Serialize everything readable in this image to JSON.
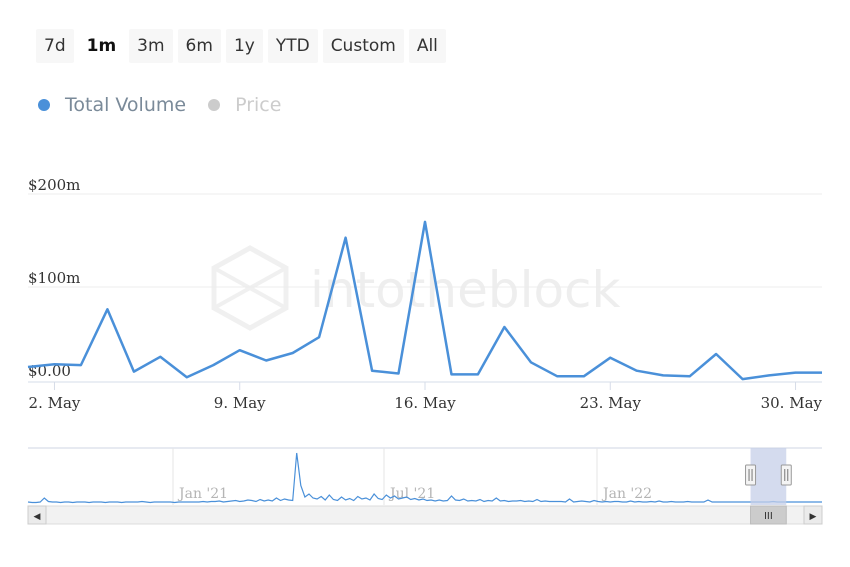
{
  "range_selector": {
    "buttons": [
      "7d",
      "1m",
      "3m",
      "6m",
      "1y",
      "YTD",
      "Custom",
      "All"
    ],
    "selected": "1m"
  },
  "legend": {
    "items": [
      {
        "label": "Total Volume",
        "color": "#4a90d9",
        "active": true
      },
      {
        "label": "Price",
        "color": "#cccccc",
        "active": false
      }
    ]
  },
  "watermark": "intotheblock",
  "chart_data": {
    "type": "line",
    "title": "",
    "xlabel": "",
    "ylabel": "",
    "ylim": [
      0,
      200
    ],
    "y_unit": "$m",
    "y_ticks": [
      "$0.00",
      "$100m",
      "$200m"
    ],
    "x_ticks": [
      "2. May",
      "9. May",
      "16. May",
      "23. May",
      "30. May"
    ],
    "grid": true,
    "legend_position": "top-left",
    "series": [
      {
        "name": "Total Volume",
        "color": "#4a90d9",
        "x": [
          "May 1",
          "May 2",
          "May 3",
          "May 4",
          "May 5",
          "May 6",
          "May 7",
          "May 8",
          "May 9",
          "May 10",
          "May 11",
          "May 12",
          "May 13",
          "May 14",
          "May 15",
          "May 16",
          "May 17",
          "May 18",
          "May 19",
          "May 20",
          "May 21",
          "May 22",
          "May 23",
          "May 24",
          "May 25",
          "May 26",
          "May 27",
          "May 28",
          "May 29",
          "May 30",
          "May 31"
        ],
        "values": [
          14,
          17,
          16,
          76,
          9,
          25,
          3,
          16,
          32,
          21,
          29,
          46,
          153,
          10,
          7,
          170,
          6,
          6,
          57,
          19,
          4,
          4,
          24,
          10,
          5,
          4,
          28,
          1,
          5,
          8,
          8
        ]
      }
    ]
  },
  "navigator": {
    "labels": [
      "Jan '21",
      "Jul '21",
      "Jan '22"
    ],
    "handle_glyph": "III",
    "left_arrow": "◀",
    "right_arrow": "▶",
    "window": [
      0.91,
      0.955
    ],
    "values": [
      0.02,
      0.01,
      0.01,
      0.02,
      0.1,
      0.03,
      0.02,
      0.02,
      0.01,
      0.02,
      0.02,
      0.01,
      0.02,
      0.02,
      0.02,
      0.01,
      0.02,
      0.02,
      0.02,
      0.01,
      0.02,
      0.02,
      0.02,
      0.01,
      0.02,
      0.02,
      0.02,
      0.02,
      0.03,
      0.02,
      0.01,
      0.02,
      0.02,
      0.02,
      0.02,
      0.02,
      0.01,
      0.02,
      0.02,
      0.02,
      0.02,
      0.02,
      0.02,
      0.03,
      0.02,
      0.03,
      0.03,
      0.04,
      0.02,
      0.03,
      0.04,
      0.05,
      0.03,
      0.04,
      0.06,
      0.05,
      0.03,
      0.07,
      0.04,
      0.06,
      0.04,
      0.1,
      0.05,
      0.08,
      0.06,
      0.05,
      1.0,
      0.35,
      0.12,
      0.18,
      0.1,
      0.08,
      0.13,
      0.06,
      0.16,
      0.07,
      0.05,
      0.12,
      0.06,
      0.09,
      0.05,
      0.13,
      0.08,
      0.1,
      0.06,
      0.18,
      0.09,
      0.07,
      0.16,
      0.1,
      0.14,
      0.08,
      0.1,
      0.12,
      0.07,
      0.09,
      0.06,
      0.08,
      0.05,
      0.06,
      0.04,
      0.06,
      0.04,
      0.05,
      0.14,
      0.06,
      0.05,
      0.08,
      0.04,
      0.05,
      0.04,
      0.07,
      0.03,
      0.05,
      0.04,
      0.1,
      0.04,
      0.05,
      0.03,
      0.04,
      0.04,
      0.05,
      0.03,
      0.04,
      0.03,
      0.07,
      0.03,
      0.04,
      0.03,
      0.03,
      0.03,
      0.03,
      0.02,
      0.08,
      0.02,
      0.03,
      0.04,
      0.03,
      0.02,
      0.05,
      0.03,
      0.02,
      0.03,
      0.02,
      0.03,
      0.03,
      0.02,
      0.02,
      0.04,
      0.02,
      0.03,
      0.02,
      0.02,
      0.03,
      0.02,
      0.04,
      0.02,
      0.02,
      0.03,
      0.02,
      0.02,
      0.02,
      0.03,
      0.02,
      0.02,
      0.02,
      0.02,
      0.06,
      0.02,
      0.02,
      0.02,
      0.02,
      0.02,
      0.02,
      0.02,
      0.02,
      0.02,
      0.02,
      0.02,
      0.02,
      0.02,
      0.02,
      0.02,
      0.03,
      0.02,
      0.02,
      0.02,
      0.02,
      0.02,
      0.02,
      0.02,
      0.02,
      0.02,
      0.02,
      0.02,
      0.02
    ]
  }
}
